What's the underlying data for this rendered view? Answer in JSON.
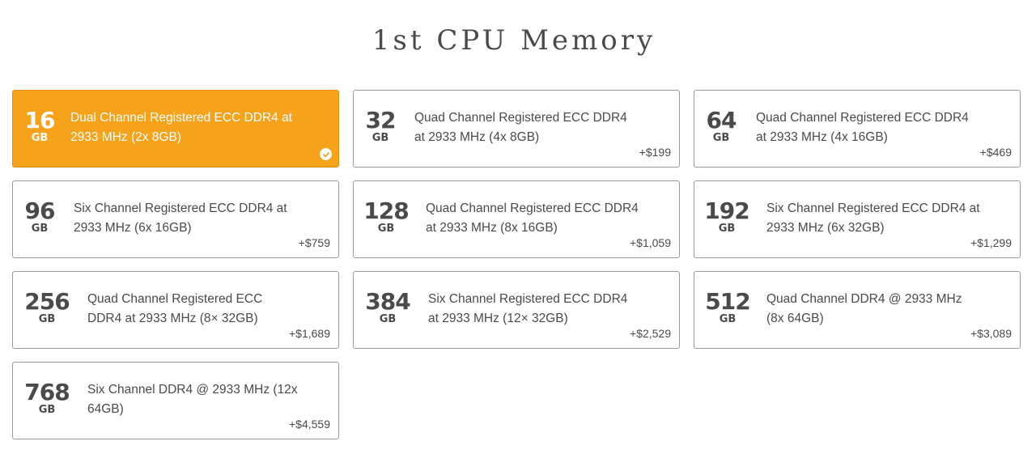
{
  "page_title": "1st CPU Memory",
  "accent_color": "#f7a21b",
  "options": [
    {
      "size": "16",
      "unit": "GB",
      "description": "Dual Channel Registered ECC DDR4 at 2933 MHz (2x 8GB)",
      "price": "",
      "selected": true
    },
    {
      "size": "32",
      "unit": "GB",
      "description": "Quad Channel Registered ECC DDR4 at 2933 MHz (4x 8GB)",
      "price": "+$199",
      "selected": false
    },
    {
      "size": "64",
      "unit": "GB",
      "description": "Quad Channel Registered ECC DDR4 at 2933 MHz (4x 16GB)",
      "price": "+$469",
      "selected": false
    },
    {
      "size": "96",
      "unit": "GB",
      "description": "Six Channel Registered ECC DDR4 at 2933 MHz (6x 16GB)",
      "price": "+$759",
      "selected": false
    },
    {
      "size": "128",
      "unit": "GB",
      "description": "Quad Channel Registered ECC DDR4 at 2933 MHz (8x 16GB)",
      "price": "+$1,059",
      "selected": false
    },
    {
      "size": "192",
      "unit": "GB",
      "description": "Six Channel Registered ECC DDR4 at 2933 MHz (6x 32GB)",
      "price": "+$1,299",
      "selected": false
    },
    {
      "size": "256",
      "unit": "GB",
      "description": "Quad Channel Registered ECC DDR4 at 2933 MHz (8× 32GB)",
      "price": "+$1,689",
      "selected": false
    },
    {
      "size": "384",
      "unit": "GB",
      "description": "Six Channel Registered ECC DDR4 at 2933 MHz (12× 32GB)",
      "price": "+$2,529",
      "selected": false
    },
    {
      "size": "512",
      "unit": "GB",
      "description": "Quad Channel DDR4 @ 2933 MHz (8x 64GB)",
      "price": "+$3,089",
      "selected": false
    },
    {
      "size": "768",
      "unit": "GB",
      "description": "Six Channel DDR4 @ 2933 MHz (12x 64GB)",
      "price": "+$4,559",
      "selected": false
    }
  ]
}
